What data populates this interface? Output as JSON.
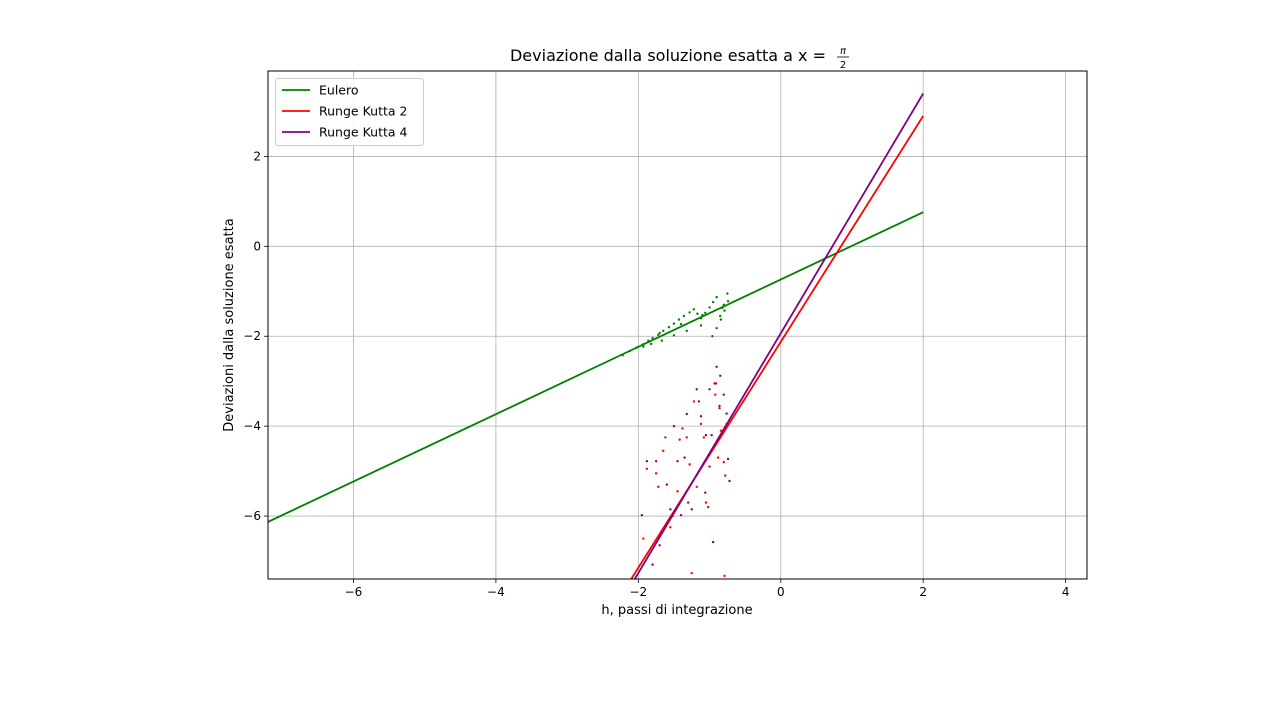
{
  "chart_data": {
    "type": "line",
    "title": "Deviazione dalla soluzione esatta a x = ",
    "title_fraction": {
      "numerator": "π",
      "denominator": "2"
    },
    "xlabel": "h, passi di integrazione",
    "ylabel": "Deviazioni dalla soluzione esatta",
    "xlim": [
      -7.2,
      4.3
    ],
    "ylim": [
      -7.4,
      3.9
    ],
    "xticks": [
      -6,
      -4,
      -2,
      0,
      2,
      4
    ],
    "xtick_labels": [
      "−6",
      "−4",
      "−2",
      "0",
      "2",
      "4"
    ],
    "yticks": [
      -6,
      -4,
      -2,
      0,
      2
    ],
    "ytick_labels": [
      "−6",
      "−4",
      "−2",
      "0",
      "2"
    ],
    "grid": true,
    "legend_position": "top-left",
    "series": [
      {
        "name": "Eulero",
        "color": "#008000",
        "line": {
          "x": [
            -7.2,
            2.0
          ],
          "y": [
            -6.13,
            0.76
          ]
        },
        "points": {
          "x": [
            -2.22,
            -2.12,
            -2.02,
            -1.93,
            -1.86,
            -1.8,
            -1.72,
            -1.65,
            -1.57,
            -1.5,
            -1.43,
            -1.36,
            -1.28,
            -1.22,
            -1.17,
            -1.12,
            -1.06,
            -1.0,
            -0.95,
            -0.9,
            -0.85,
            -0.8,
            -0.75,
            -1.93,
            -1.82,
            -1.67,
            -1.5,
            -1.32,
            -1.12,
            -0.96,
            -0.9,
            -0.84,
            -0.79,
            -0.74,
            -1.7,
            -1.4,
            -1.1,
            -0.82
          ],
          "y": [
            -2.42,
            -2.33,
            -2.25,
            -2.18,
            -2.1,
            -2.04,
            -1.97,
            -1.88,
            -1.8,
            -1.72,
            -1.63,
            -1.55,
            -1.47,
            -1.4,
            -1.5,
            -1.6,
            -1.48,
            -1.36,
            -1.24,
            -1.13,
            -1.55,
            -1.3,
            -1.05,
            -2.23,
            -2.17,
            -2.1,
            -1.98,
            -1.88,
            -1.76,
            -2.0,
            -1.82,
            -1.63,
            -1.43,
            -1.22,
            -1.93,
            -1.73,
            -1.53,
            -1.37
          ]
        }
      },
      {
        "name": "Runge Kutta 2",
        "color": "#ff0000",
        "line": {
          "x": [
            -2.1,
            2.0
          ],
          "y": [
            -7.4,
            2.9
          ]
        },
        "points": {
          "x": [
            -1.93,
            -1.88,
            -1.75,
            -1.65,
            -1.55,
            -1.45,
            -1.38,
            -1.28,
            -1.18,
            -1.08,
            -1.0,
            -0.93,
            -0.86,
            -0.8,
            -0.76,
            -1.62,
            -1.42,
            -1.32,
            -1.22,
            -1.12,
            -1.02,
            -0.92,
            -0.84,
            -0.78,
            -1.25,
            -0.79,
            -1.72,
            -1.52,
            -1.05,
            -0.88
          ],
          "y": [
            -6.5,
            -4.95,
            -5.05,
            -4.55,
            -6.25,
            -5.45,
            -4.05,
            -4.85,
            -5.35,
            -4.25,
            -4.9,
            -3.05,
            -3.6,
            -4.8,
            -3.95,
            -4.25,
            -4.3,
            -4.25,
            -3.45,
            -3.95,
            -5.8,
            -3.3,
            -4.1,
            -5.1,
            -7.27,
            -7.33,
            -5.35,
            -6.0,
            -5.7,
            -4.7
          ]
        }
      },
      {
        "name": "Runge Kutta 4",
        "color": "#800080",
        "line": {
          "x": [
            -2.05,
            2.0
          ],
          "y": [
            -7.4,
            3.4
          ]
        },
        "points": {
          "x": [
            -1.95,
            -1.88,
            -1.8,
            -1.75,
            -1.7,
            -1.6,
            -1.5,
            -1.45,
            -1.4,
            -1.32,
            -1.25,
            -1.18,
            -1.12,
            -1.06,
            -1.0,
            -0.95,
            -0.9,
            -0.85,
            -0.8,
            -0.76,
            -0.72,
            -1.3,
            -1.15,
            -1.05,
            -0.97,
            -0.91,
            -0.86,
            -0.74,
            -1.55,
            -1.35
          ],
          "y": [
            -5.98,
            -4.78,
            -7.08,
            -4.78,
            -6.65,
            -5.3,
            -4.0,
            -4.78,
            -5.98,
            -3.73,
            -5.85,
            -3.18,
            -3.78,
            -5.48,
            -3.18,
            -6.58,
            -2.68,
            -2.88,
            -3.3,
            -3.72,
            -5.22,
            -5.7,
            -3.45,
            -4.2,
            -4.2,
            -3.05,
            -3.55,
            -4.73,
            -5.85,
            -4.7
          ]
        }
      }
    ]
  }
}
